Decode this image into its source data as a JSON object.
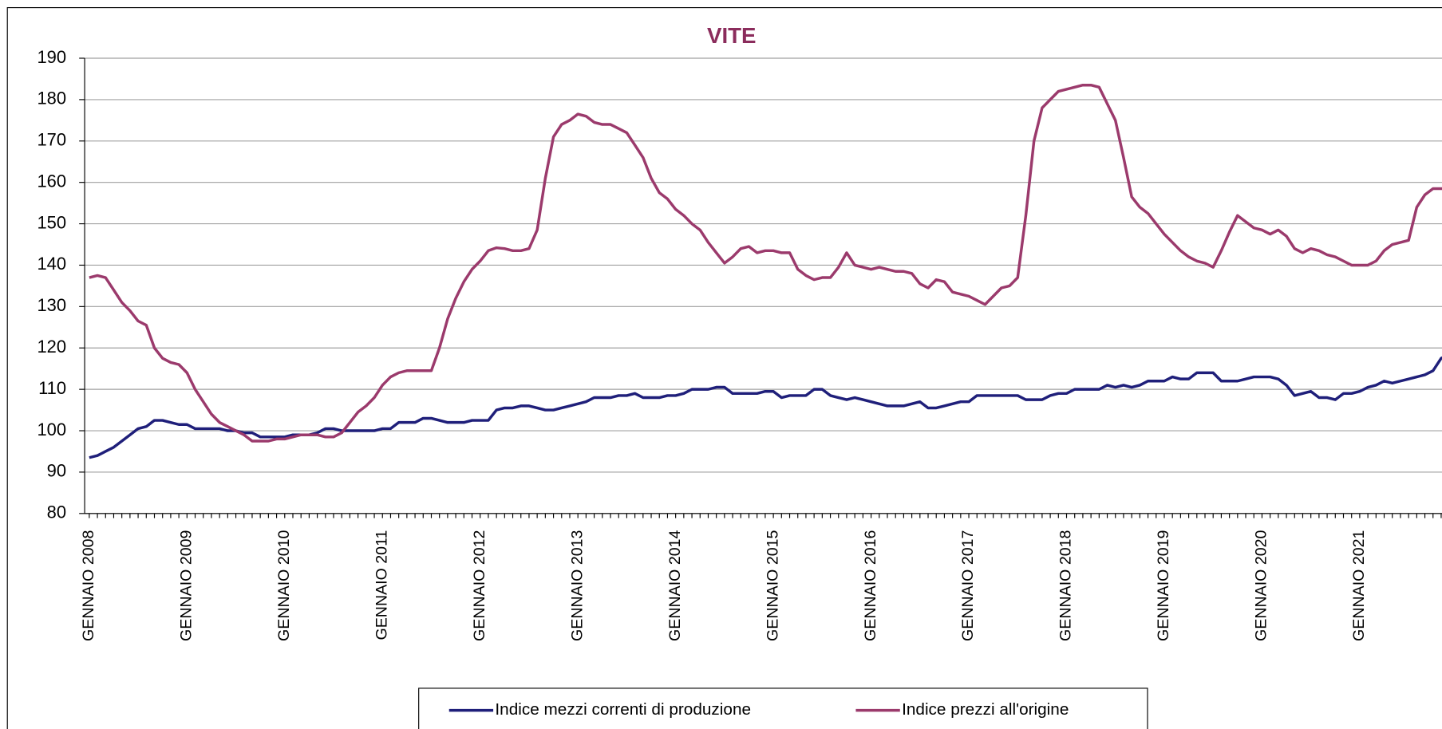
{
  "chart_data": {
    "type": "line",
    "title": "VITE",
    "categories": [
      "GENNAIO 2008",
      null,
      null,
      null,
      null,
      null,
      null,
      null,
      null,
      null,
      null,
      null,
      "GENNAIO 2009",
      null,
      null,
      null,
      null,
      null,
      null,
      null,
      null,
      null,
      null,
      null,
      "GENNAIO 2010",
      null,
      null,
      null,
      null,
      null,
      null,
      null,
      null,
      null,
      null,
      null,
      "GENNAIO 2011",
      null,
      null,
      null,
      null,
      null,
      null,
      null,
      null,
      null,
      null,
      null,
      "GENNAIO 2012",
      null,
      null,
      null,
      null,
      null,
      null,
      null,
      null,
      null,
      null,
      null,
      "GENNAIO 2013",
      null,
      null,
      null,
      null,
      null,
      null,
      null,
      null,
      null,
      null,
      null,
      "GENNAIO 2014",
      null,
      null,
      null,
      null,
      null,
      null,
      null,
      null,
      null,
      null,
      null,
      "GENNAIO 2015",
      null,
      null,
      null,
      null,
      null,
      null,
      null,
      null,
      null,
      null,
      null,
      "GENNAIO 2016",
      null,
      null,
      null,
      null,
      null,
      null,
      null,
      null,
      null,
      null,
      null,
      "GENNAIO 2017",
      null,
      null,
      null,
      null,
      null,
      null,
      null,
      null,
      null,
      null,
      null,
      "GENNAIO 2018",
      null,
      null,
      null,
      null,
      null,
      null,
      null,
      null,
      null,
      null,
      null,
      "GENNAIO 2019",
      null,
      null,
      null,
      null,
      null,
      null,
      null,
      null,
      null,
      null,
      null,
      "GENNAIO 2020",
      null,
      null,
      null,
      null,
      null,
      null,
      null,
      null,
      null,
      null,
      null,
      "GENNAIO 2021",
      null,
      null,
      null,
      null,
      null,
      null,
      null,
      null,
      null,
      null,
      null
    ],
    "series": [
      {
        "name": "Indice mezzi correnti di produzione",
        "color": "#1f1f7a",
        "values": [
          93.5,
          94,
          95,
          96,
          97.5,
          99,
          100.5,
          101,
          102.5,
          102.5,
          102,
          101.5,
          101.5,
          100.5,
          100.5,
          100.5,
          100.5,
          100,
          100,
          99.5,
          99.5,
          98.5,
          98.5,
          98.5,
          98.5,
          99,
          99,
          99,
          99.5,
          100.5,
          100.5,
          100,
          100,
          100,
          100,
          100,
          100.5,
          100.5,
          102,
          102,
          102,
          103,
          103,
          102.5,
          102,
          102,
          102,
          102.5,
          102.5,
          102.5,
          105,
          105.5,
          105.5,
          106,
          106,
          105.5,
          105,
          105,
          105.5,
          106,
          106.5,
          107,
          108,
          108,
          108,
          108.5,
          108.5,
          109,
          108,
          108,
          108,
          108.5,
          108.5,
          109,
          110,
          110,
          110,
          110.5,
          110.5,
          109,
          109,
          109,
          109,
          109.5,
          109.5,
          108,
          108.5,
          108.5,
          108.5,
          110,
          110,
          108.5,
          108,
          107.5,
          108,
          107.5,
          107,
          106.5,
          106,
          106,
          106,
          106.5,
          107,
          105.5,
          105.5,
          106,
          106.5,
          107,
          107,
          108.5,
          108.5,
          108.5,
          108.5,
          108.5,
          108.5,
          107.5,
          107.5,
          107.5,
          108.5,
          109,
          109,
          110,
          110,
          110,
          110,
          111,
          110.5,
          111,
          110.5,
          111,
          112,
          112,
          112,
          113,
          112.5,
          112.5,
          114,
          114,
          114,
          112,
          112,
          112,
          112.5,
          113,
          113,
          113,
          112.5,
          111,
          108.5,
          109,
          109.5,
          108,
          108,
          107.5,
          109,
          109,
          109.5,
          110.5,
          111,
          112,
          111.5,
          112,
          112.5,
          113,
          113.5,
          114.5,
          117.5,
          118.5
        ]
      },
      {
        "name": "Indice prezzi all'origine",
        "color": "#9b3a6c",
        "values": [
          137,
          137.5,
          137,
          134,
          131,
          129,
          126.5,
          125.5,
          120,
          117.5,
          116.5,
          116,
          114,
          110,
          107,
          104,
          102,
          101,
          100,
          99,
          97.5,
          97.5,
          97.5,
          98,
          98,
          98.5,
          99,
          99,
          99,
          98.5,
          98.5,
          99.5,
          102,
          104.5,
          106,
          108,
          111,
          113,
          114,
          114.5,
          114.5,
          114.5,
          114.5,
          120,
          127,
          132,
          136,
          139,
          141,
          143.5,
          144.2,
          144,
          143.5,
          143.5,
          144,
          148.5,
          161,
          171,
          174,
          175,
          176.5,
          176,
          174.5,
          174,
          174,
          173,
          172,
          169,
          166,
          161,
          157.5,
          156,
          153.5,
          152,
          150,
          148.5,
          145.5,
          143,
          140.5,
          142,
          144,
          144.5,
          143,
          143.5,
          143.5,
          143,
          143,
          139,
          137.5,
          136.5,
          137,
          137,
          139.5,
          143,
          140,
          139.5,
          139,
          139.5,
          139,
          138.5,
          138.5,
          138,
          135.5,
          134.5,
          136.5,
          136,
          133.5,
          133,
          132.5,
          131.5,
          130.5,
          132.5,
          134.5,
          135,
          137,
          152,
          170,
          178,
          180,
          182,
          182.5,
          183,
          183.5,
          183.5,
          183,
          179,
          175,
          166,
          156.5,
          154,
          152.5,
          150,
          147.5,
          145.5,
          143.5,
          142,
          141,
          140.5,
          139.5,
          143.5,
          148,
          152,
          150.5,
          149,
          148.5,
          147.5,
          148.5,
          147,
          144,
          143,
          144,
          143.5,
          142.5,
          142,
          141,
          140,
          140,
          140,
          141,
          143.5,
          145,
          145.5,
          146,
          154,
          157,
          158.5,
          158.5,
          158.5
        ]
      }
    ],
    "ylim": [
      80,
      190
    ],
    "yticks": [
      80,
      90,
      100,
      110,
      120,
      130,
      140,
      150,
      160,
      170,
      180,
      190
    ],
    "grid": true
  }
}
